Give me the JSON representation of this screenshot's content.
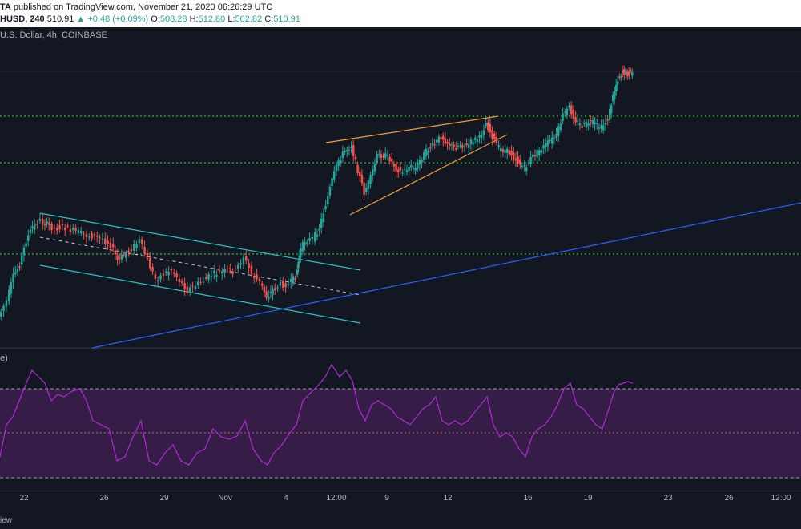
{
  "header": {
    "line1_prefix": "TA",
    "line1_text": " published on TradingView.com, November 21, 2020 06:26:29 UTC",
    "symbol": "HUSD, 240",
    "last": "510.91",
    "change": "▲ +0.48 (+0.09%)",
    "o_label": "O:",
    "o_value": "508.28",
    "h_label": "H:",
    "h_value": "512.80",
    "l_label": "L:",
    "l_value": "502.82",
    "c_label": "C:",
    "c_value": "510.91"
  },
  "chart_title": "U.S. Dollar, 4h, COINBASE",
  "rsi_label": "e)",
  "footer_text": "iew",
  "x_ticks": [
    "22",
    "26",
    "29",
    "Nov",
    "4",
    "12:00",
    "9",
    "12",
    "16",
    "19",
    "23",
    "26",
    "12:00"
  ],
  "colors": {
    "background": "#131722",
    "up": "#26a69a",
    "down": "#ef5350",
    "horizontal_levels": "#2ee62e",
    "channel": "#2bc4c4",
    "wedge": "#f29d38",
    "trendline": "#2962ff",
    "rsi": "#b02bd8",
    "rsi_band": "#3d1f4f"
  },
  "chart_data": {
    "type": "candlestick",
    "indicator": "RSI",
    "annotations": [
      "descending channel",
      "rising wedge",
      "horizontal support/resistance levels",
      "ascending trendline"
    ]
  }
}
